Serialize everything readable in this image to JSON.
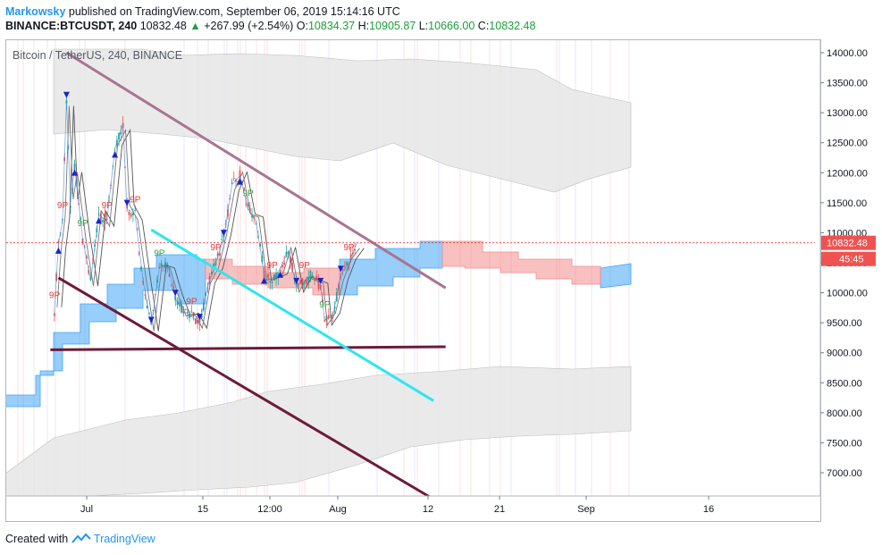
{
  "header": {
    "author": "Markowsky",
    "published_text": "published on TradingView.com, September 06, 2019 15:14:16 UTC",
    "symbol": "BINANCE:BTCUSDT, 240",
    "last": "10832.48",
    "change": "+267.99 (+2.54%)",
    "o_label": "O:",
    "o": "10834.37",
    "h_label": "H:",
    "h": "10905.87",
    "l_label": "L:",
    "l": "10666.00",
    "c_label": "C:",
    "c": "10832.48"
  },
  "footer": {
    "created_with": "Created with",
    "brand": "TradingView"
  },
  "colors": {
    "price_line": "#e53935",
    "price_label_bg": "#ef5350",
    "up_candle": "#26a69a",
    "down_candle": "#ef5350",
    "cloud_gray": "#e6e6e6",
    "ichimoku_blue": "#42a5f5",
    "ichimoku_red": "#f48c8c",
    "trend_mauve": "#a8758f",
    "trend_maroon": "#6d1a3a",
    "trend_cyan": "#2ee6f0"
  },
  "chart_data": {
    "type": "candlestick",
    "title": "Bitcoin / TetherUS, 240, BINANCE",
    "ylim": [
      6600,
      14300
    ],
    "y_ticks": [
      "14000.00",
      "13500.00",
      "13000.00",
      "12500.00",
      "12000.00",
      "11500.00",
      "11000.00",
      "10500.00",
      "10000.00",
      "9500.00",
      "9000.00",
      "8500.00",
      "8000.00",
      "7500.00",
      "7000.00"
    ],
    "x_ticks": [
      "Jul",
      "15",
      "12:00",
      "Aug",
      "12",
      "21",
      "Sep",
      "16"
    ],
    "current_price_label": "10832.48",
    "countdown_label": "45:45",
    "close_path": [
      [
        "Jun 23",
        9700
      ],
      [
        "Jun 24",
        10800
      ],
      [
        "Jun 25",
        11200
      ],
      [
        "Jun 26",
        13200
      ],
      [
        "Jun 27",
        11500
      ],
      [
        "Jun 28",
        12100
      ],
      [
        "Jun 30",
        10900
      ],
      [
        "Jul 2",
        10200
      ],
      [
        "Jul 4",
        11300
      ],
      [
        "Jul 6",
        11200
      ],
      [
        "Jul 8",
        12400
      ],
      [
        "Jul 10",
        12800
      ],
      [
        "Jul 11",
        11400
      ],
      [
        "Jul 13",
        11300
      ],
      [
        "Jul 15",
        10200
      ],
      [
        "Jul 17",
        9450
      ],
      [
        "Jul 19",
        10400
      ],
      [
        "Jul 21",
        10500
      ],
      [
        "Jul 23",
        9900
      ],
      [
        "Jul 25",
        9700
      ],
      [
        "Jul 27",
        9600
      ],
      [
        "Jul 29",
        9500
      ],
      [
        "Jul 31",
        10100
      ],
      [
        "Aug 2",
        10500
      ],
      [
        "Aug 4",
        10900
      ],
      [
        "Aug 6",
        11800
      ],
      [
        "Aug 8",
        11950
      ],
      [
        "Aug 10",
        11400
      ],
      [
        "Aug 12",
        11200
      ],
      [
        "Aug 14",
        10300
      ],
      [
        "Aug 16",
        10200
      ],
      [
        "Aug 18",
        10400
      ],
      [
        "Aug 20",
        10700
      ],
      [
        "Aug 22",
        10100
      ],
      [
        "Aug 24",
        10200
      ],
      [
        "Aug 26",
        10300
      ],
      [
        "Aug 28",
        10100
      ],
      [
        "Aug 29",
        9550
      ],
      [
        "Aug 31",
        9600
      ],
      [
        "Sep 2",
        10300
      ],
      [
        "Sep 4",
        10500
      ],
      [
        "Sep 6",
        10832
      ]
    ],
    "markers_9p": [
      "9P",
      "9P",
      "9P",
      "9P",
      "9P",
      "9P",
      "9P",
      "9P",
      "9P",
      "9P",
      "9P",
      "9P",
      "9P"
    ],
    "trend_lines": [
      {
        "color": "mauve",
        "from": [
          "Jun 26",
          14000
        ],
        "to": [
          "Sep 28",
          10080
        ]
      },
      {
        "color": "maroon",
        "from": [
          "Jun 22",
          9050
        ],
        "to": [
          "Sep 28",
          9100
        ]
      },
      {
        "color": "maroon",
        "from": [
          "Jun 24",
          10250
        ],
        "to": [
          "Sep 24",
          6600
        ]
      },
      {
        "color": "cyan",
        "from": [
          "Jul 17",
          11050
        ],
        "to": [
          "Sep 25",
          8200
        ]
      }
    ]
  }
}
